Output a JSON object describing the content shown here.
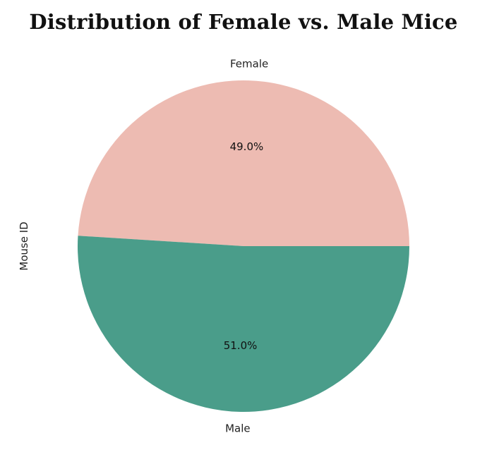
{
  "chart_data": {
    "type": "pie",
    "title": "Distribution of Female vs. Male Mice",
    "ylabel": "Mouse ID",
    "slices": [
      {
        "label": "Female",
        "value": 49.0,
        "pct_text": "49.0%",
        "color": "#EDBBB2"
      },
      {
        "label": "Male",
        "value": 51.0,
        "pct_text": "51.0%",
        "color": "#4A9D8A"
      }
    ],
    "start_angle_deg": 0
  }
}
